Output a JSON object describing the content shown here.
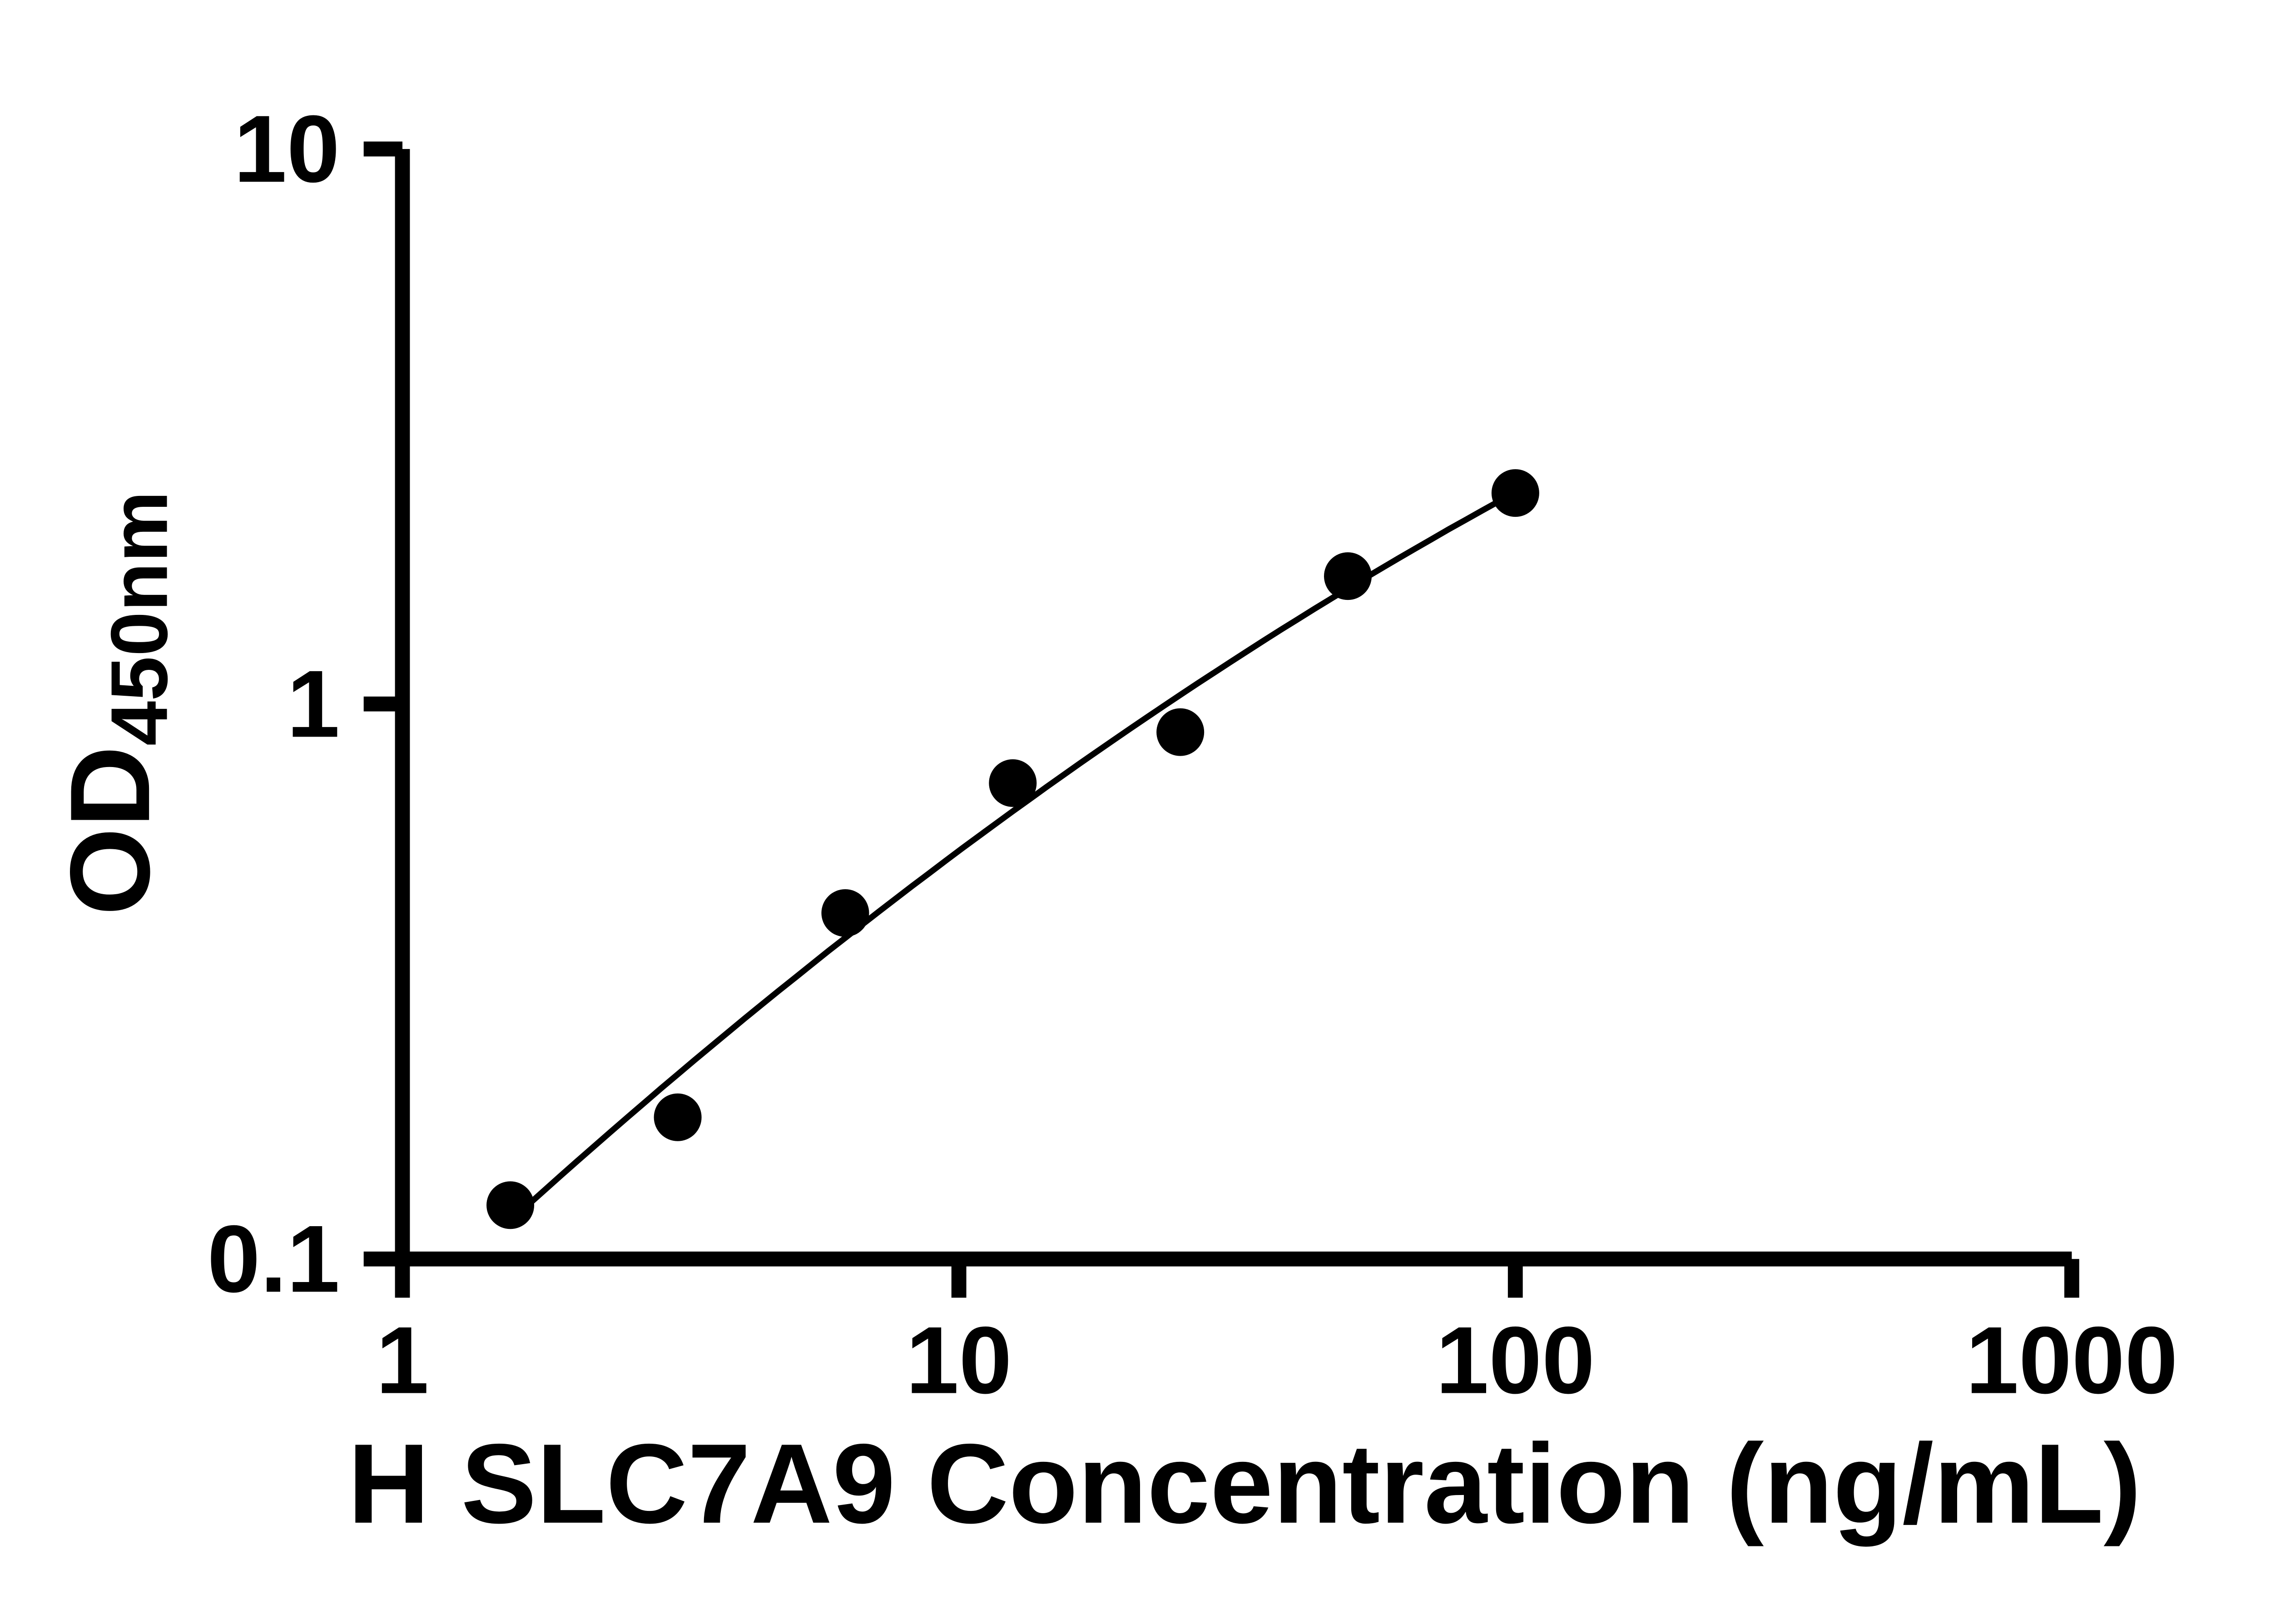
{
  "chart_data": {
    "type": "scatter",
    "title": "",
    "xlabel": "H SLC7A9 Concentration (ng/mL)",
    "ylabel_main": "OD",
    "ylabel_sub": "450nm",
    "x_scale": "log",
    "y_scale": "log",
    "xlim": [
      1,
      1000
    ],
    "ylim": [
      0.1,
      10
    ],
    "grid": false,
    "legend": "none",
    "x_ticks": [
      {
        "value": 1,
        "label": "1"
      },
      {
        "value": 10,
        "label": "10"
      },
      {
        "value": 100,
        "label": "100"
      },
      {
        "value": 1000,
        "label": "1000"
      }
    ],
    "y_ticks": [
      {
        "value": 0.1,
        "label": "0.1"
      },
      {
        "value": 1,
        "label": "1"
      },
      {
        "value": 10,
        "label": "10"
      }
    ],
    "points": [
      {
        "x": 1.563,
        "y": 0.125
      },
      {
        "x": 3.125,
        "y": 0.18
      },
      {
        "x": 6.25,
        "y": 0.42
      },
      {
        "x": 12.5,
        "y": 0.72
      },
      {
        "x": 25,
        "y": 0.89
      },
      {
        "x": 50,
        "y": 1.7
      },
      {
        "x": 100,
        "y": 2.4
      }
    ],
    "trendline": {
      "type": "smooth-fit-loglog",
      "x_start": 1.563,
      "x_end": 100
    },
    "marker_color": "#000000",
    "line_color": "#000000",
    "axis_color": "#000000",
    "text_color": "#000000",
    "background_color": "#ffffff"
  }
}
